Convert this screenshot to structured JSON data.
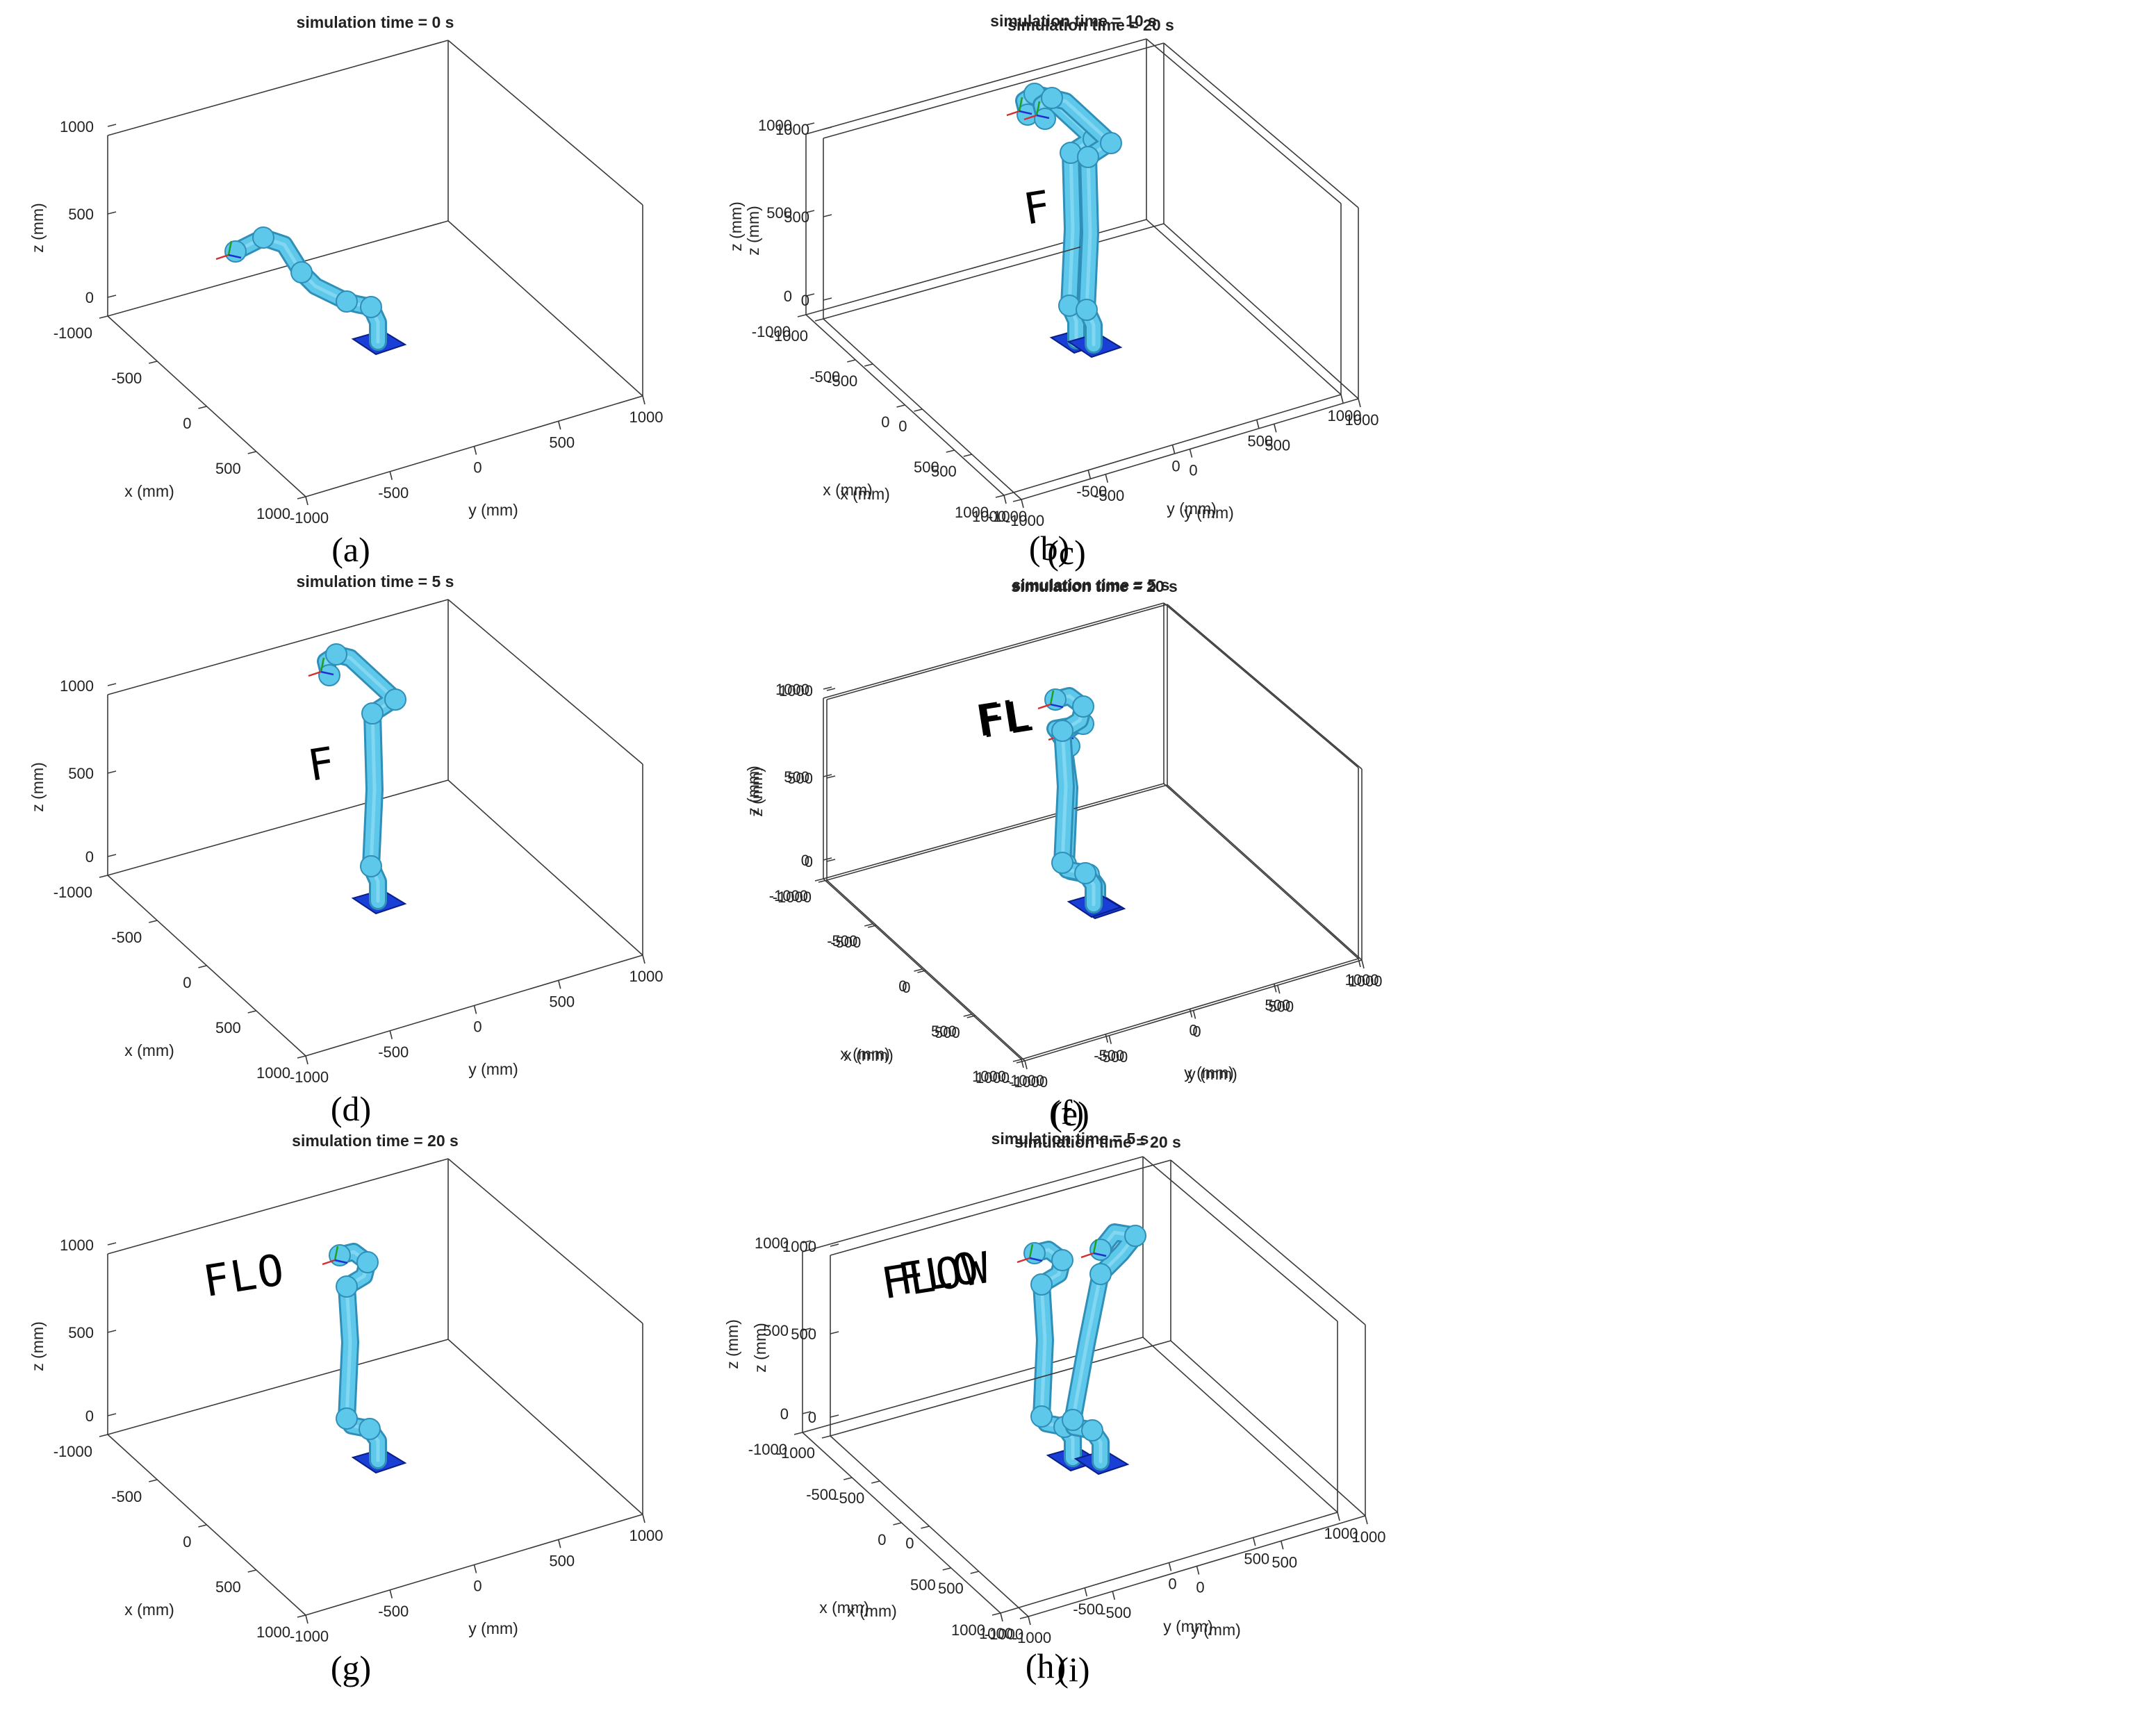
{
  "colors": {
    "arm_fill": "#5ec8ea",
    "arm_stroke": "#2f8fb8",
    "arm_joint": "#8ad9f2",
    "base_fill": "#1a3fd6",
    "base_edge": "#0a1e8a",
    "trace": "#000000",
    "axis": "#3a3a3a",
    "frame_x": "#d03030",
    "frame_y": "#20a020",
    "frame_z": "#2030d0"
  },
  "common_axes": {
    "z_ticks": [
      "0",
      "500",
      "1000"
    ],
    "x_ticks": [
      "-1000",
      "-500",
      "0",
      "500",
      "1000"
    ],
    "y_ticks": [
      "-1000",
      "-500",
      "0",
      "500",
      "1000"
    ],
    "xlabel": "x (mm)",
    "ylabel": "y (mm)",
    "zlabel": "z (mm)"
  },
  "panels": [
    {
      "id": "a",
      "title": "simulation time = 0 s",
      "label": "(a)",
      "trace": "",
      "pose": "extended-left"
    },
    {
      "id": "b",
      "title": "simulation time = 10 s",
      "label": "(b)",
      "trace": "",
      "pose": "raised-reach"
    },
    {
      "id": "c",
      "title": "simulation time = 20 s",
      "label": "(c)",
      "trace": "F",
      "pose": "raised-reach"
    },
    {
      "id": "d",
      "title": "simulation time = 5 s",
      "label": "(d)",
      "trace": "F",
      "pose": "raised-reach"
    },
    {
      "id": "e",
      "title": "simulation time = 20 s",
      "label": "(e)",
      "trace": "FL",
      "pose": "folded"
    },
    {
      "id": "f",
      "title": "simulation time = 5 s",
      "label": "(f)",
      "trace": "FL",
      "pose": "folded-high"
    },
    {
      "id": "g",
      "title": "simulation time = 20 s",
      "label": "(g)",
      "trace": "FLO",
      "pose": "folded-high"
    },
    {
      "id": "h",
      "title": "simulation time = 5 s",
      "label": "(h)",
      "trace": "FLO",
      "pose": "folded-high"
    },
    {
      "id": "i",
      "title": "simulation time = 20 s",
      "label": "(i)",
      "trace": "FLOW",
      "pose": "leaning"
    }
  ]
}
